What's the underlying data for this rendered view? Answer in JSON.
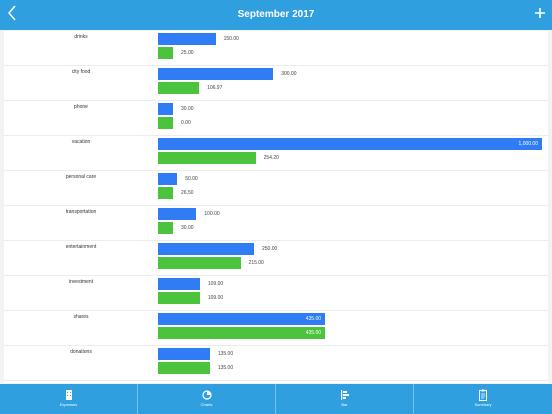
{
  "header": {
    "title": "September 2017",
    "back_icon": "chevron-left-icon",
    "add_icon": "plus-icon"
  },
  "colors": {
    "header": "#2f9fe0",
    "budget_bar": "#2f7cf5",
    "spent_bar": "#4cc33d"
  },
  "chart_data": {
    "type": "bar",
    "orientation": "horizontal",
    "xlim": [
      0,
      1000
    ],
    "categories": [
      "drinks",
      "city food",
      "phone",
      "vacation",
      "personal care",
      "transportation",
      "entertainment",
      "investment",
      "shares",
      "donations"
    ],
    "series": [
      {
        "values": [
          150,
          300,
          30,
          1000,
          50,
          100,
          250,
          109,
          435,
          135
        ],
        "labels": [
          "150.00",
          "300.00",
          "30.00",
          "1,000.00",
          "50.00",
          "100.00",
          "250.00",
          "109.00",
          "435.00",
          "135.00"
        ]
      },
      {
        "values": [
          25,
          106.97,
          0,
          254.2,
          26.5,
          30,
          215,
          109,
          435,
          135
        ],
        "labels": [
          "25.00",
          "106.97",
          "0.00",
          "254.20",
          "26.50",
          "30.00",
          "215.00",
          "109.00",
          "435.00",
          "135.00"
        ]
      }
    ]
  },
  "tabbar": {
    "tabs": [
      {
        "label": "Expenses",
        "icon": "building-icon"
      },
      {
        "label": "Charts",
        "icon": "pie-chart-icon"
      },
      {
        "label": "Bar",
        "icon": "bar-chart-icon"
      },
      {
        "label": "Summary",
        "icon": "clipboard-icon"
      }
    ]
  }
}
